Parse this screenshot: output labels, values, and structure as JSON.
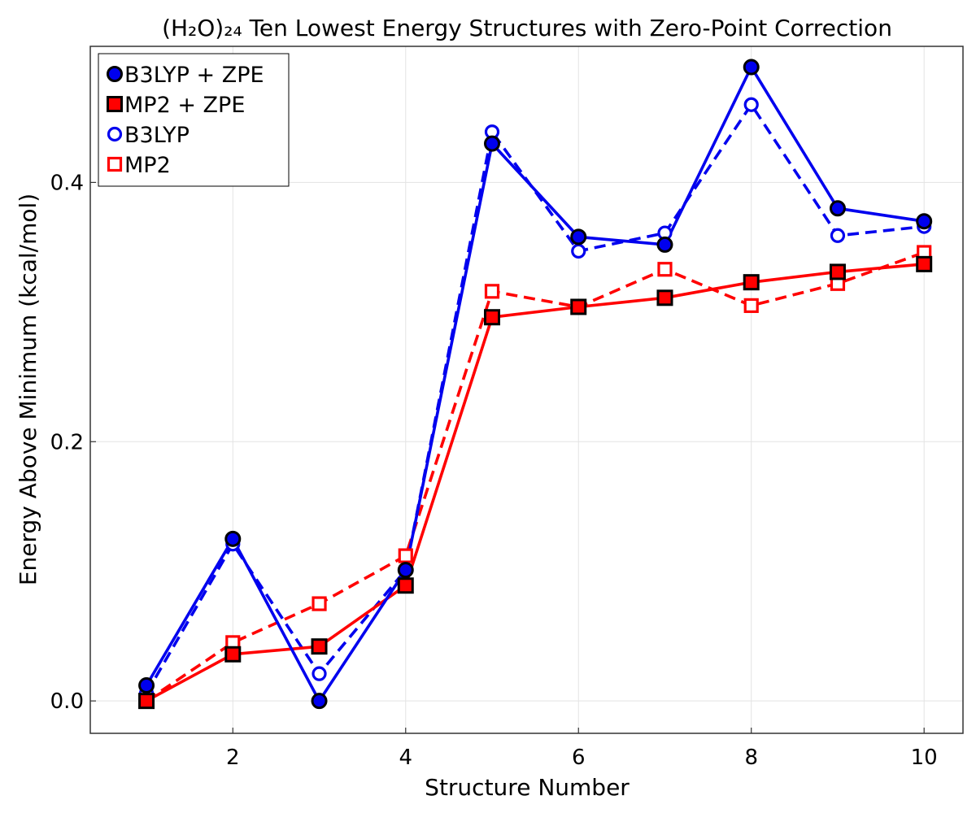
{
  "chart_data": {
    "type": "line",
    "title": "(H₂O)₂₄ Ten Lowest Energy Structures with Zero-Point Correction",
    "xlabel": "Structure Number",
    "ylabel": "Energy Above Minimum (kcal/mol)",
    "xlim": [
      0.35,
      10.45
    ],
    "ylim": [
      -0.025,
      0.505
    ],
    "xticks": [
      2,
      4,
      6,
      8,
      10
    ],
    "xtick_labels": [
      "2",
      "4",
      "6",
      "8",
      "10"
    ],
    "yticks": [
      0.0,
      0.2,
      0.4
    ],
    "ytick_labels": [
      "0.0",
      "0.2",
      "0.4"
    ],
    "grid": true,
    "legend_position": "top-left",
    "x": [
      1,
      2,
      3,
      4,
      5,
      6,
      7,
      8,
      9,
      10
    ],
    "series": [
      {
        "name": "B3LYP + ZPE",
        "color": "#0000ee",
        "marker": "circle-filled",
        "line": "solid",
        "values": [
          0.012,
          0.125,
          0.0,
          0.101,
          0.43,
          0.358,
          0.352,
          0.489,
          0.38,
          0.37
        ]
      },
      {
        "name": "MP2 + ZPE",
        "color": "#ff0000",
        "marker": "square-filled",
        "line": "solid",
        "values": [
          0.0,
          0.036,
          0.042,
          0.089,
          0.296,
          0.304,
          0.311,
          0.323,
          0.331,
          0.337
        ]
      },
      {
        "name": "B3LYP",
        "color": "#0000ee",
        "marker": "circle-open",
        "line": "dashed",
        "values": [
          0.006,
          0.121,
          0.021,
          0.101,
          0.439,
          0.347,
          0.361,
          0.46,
          0.359,
          0.366
        ]
      },
      {
        "name": "MP2",
        "color": "#ff0000",
        "marker": "square-open",
        "line": "dashed",
        "values": [
          0.0,
          0.045,
          0.075,
          0.112,
          0.316,
          0.304,
          0.333,
          0.305,
          0.322,
          0.346
        ]
      }
    ]
  }
}
